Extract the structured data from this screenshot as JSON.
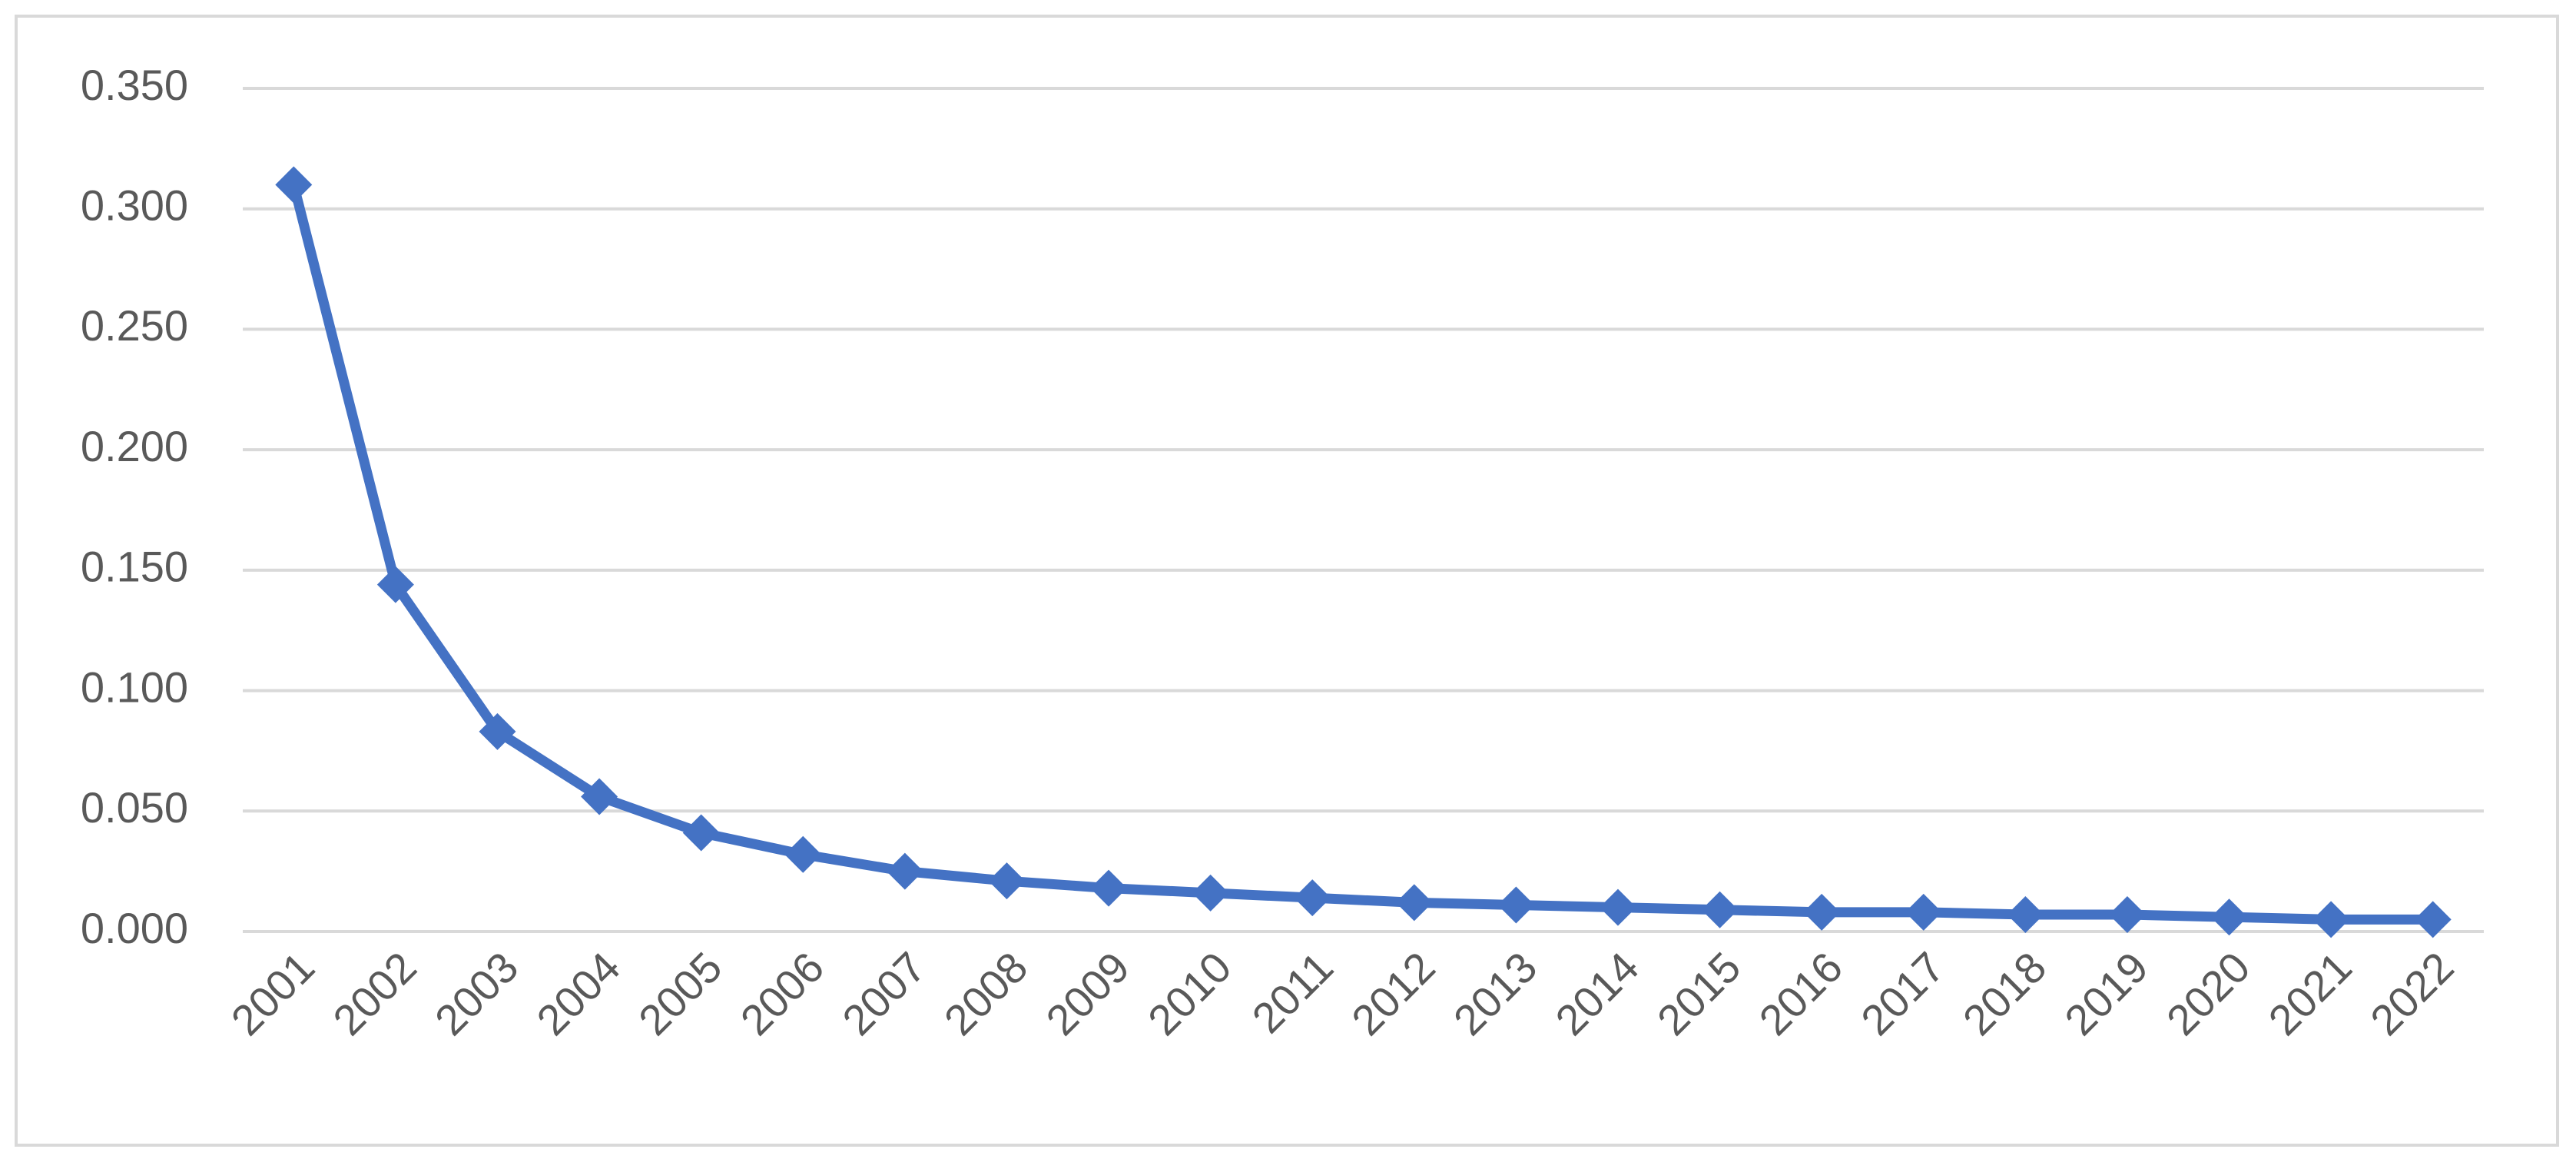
{
  "chart_data": {
    "type": "line",
    "categories": [
      "2001",
      "2002",
      "2003",
      "2004",
      "2005",
      "2006",
      "2007",
      "2008",
      "2009",
      "2010",
      "2011",
      "2012",
      "2013",
      "2014",
      "2015",
      "2016",
      "2017",
      "2018",
      "2019",
      "2020",
      "2021",
      "2022"
    ],
    "series": [
      {
        "color": "#4472c4",
        "values": [
          0.31,
          0.144,
          0.083,
          0.056,
          0.041,
          0.032,
          0.025,
          0.021,
          0.018,
          0.016,
          0.014,
          0.012,
          0.011,
          0.01,
          0.009,
          0.008,
          0.008,
          0.007,
          0.007,
          0.006,
          0.005,
          0.005
        ]
      }
    ],
    "ylim": [
      0,
      0.35
    ],
    "yticks": [
      {
        "value": 0,
        "label": "0.000"
      },
      {
        "value": 0.05,
        "label": "0.050"
      },
      {
        "value": 0.1,
        "label": "0.100"
      },
      {
        "value": 0.15,
        "label": "0.150"
      },
      {
        "value": 0.2,
        "label": "0.200"
      },
      {
        "value": 0.25,
        "label": "0.250"
      },
      {
        "value": 0.3,
        "label": "0.300"
      },
      {
        "value": 0.35,
        "label": "0.350"
      }
    ],
    "grid": true,
    "marker": "diamond"
  }
}
